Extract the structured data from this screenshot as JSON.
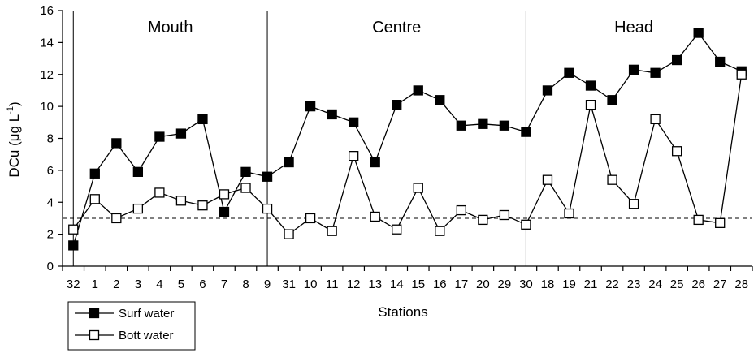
{
  "chart_data": {
    "type": "line",
    "xlabel": "Stations",
    "ylabel_main": "DCu (μg L",
    "ylabel_sup": "-1",
    "ylabel_close": ")",
    "ylim": [
      0,
      16
    ],
    "yticks": [
      "0",
      "2",
      "4",
      "6",
      "8",
      "10",
      "12",
      "14",
      "16"
    ],
    "categories": [
      "32",
      "1",
      "2",
      "3",
      "4",
      "5",
      "6",
      "7",
      "8",
      "9",
      "31",
      "10",
      "11",
      "12",
      "13",
      "14",
      "15",
      "16",
      "17",
      "20",
      "29",
      "30",
      "18",
      "19",
      "21",
      "22",
      "23",
      "24",
      "25",
      "26",
      "27",
      "28"
    ],
    "reference_line": 3,
    "regions": [
      {
        "label": "Mouth",
        "start": 0.5,
        "end": 9.5
      },
      {
        "label": "Centre",
        "start": 9.5,
        "end": 21.5
      },
      {
        "label": "Head",
        "start": 21.5,
        "end": 31.5
      }
    ],
    "series": [
      {
        "name": "Surf water",
        "marker": "filled-square",
        "color": "#000000",
        "values": [
          1.3,
          5.8,
          7.7,
          5.9,
          8.1,
          8.3,
          9.2,
          3.4,
          5.9,
          5.6,
          6.5,
          10.0,
          9.5,
          9.0,
          6.5,
          10.1,
          11.0,
          10.4,
          8.8,
          8.9,
          8.8,
          8.4,
          11.0,
          12.1,
          11.3,
          10.4,
          12.3,
          12.1,
          12.9,
          14.6,
          12.8,
          12.2
        ]
      },
      {
        "name": "Bott water",
        "marker": "open-square",
        "color": "#000000",
        "values": [
          2.3,
          4.2,
          3.0,
          3.6,
          4.6,
          4.1,
          3.8,
          4.5,
          4.9,
          3.6,
          2.0,
          3.0,
          2.2,
          6.9,
          3.1,
          2.3,
          4.9,
          2.2,
          3.5,
          2.9,
          3.2,
          2.6,
          5.4,
          3.3,
          10.1,
          5.4,
          3.9,
          9.2,
          7.2,
          2.9,
          2.7,
          12.0
        ]
      }
    ],
    "legend": "bottom-left",
    "grid": false
  }
}
